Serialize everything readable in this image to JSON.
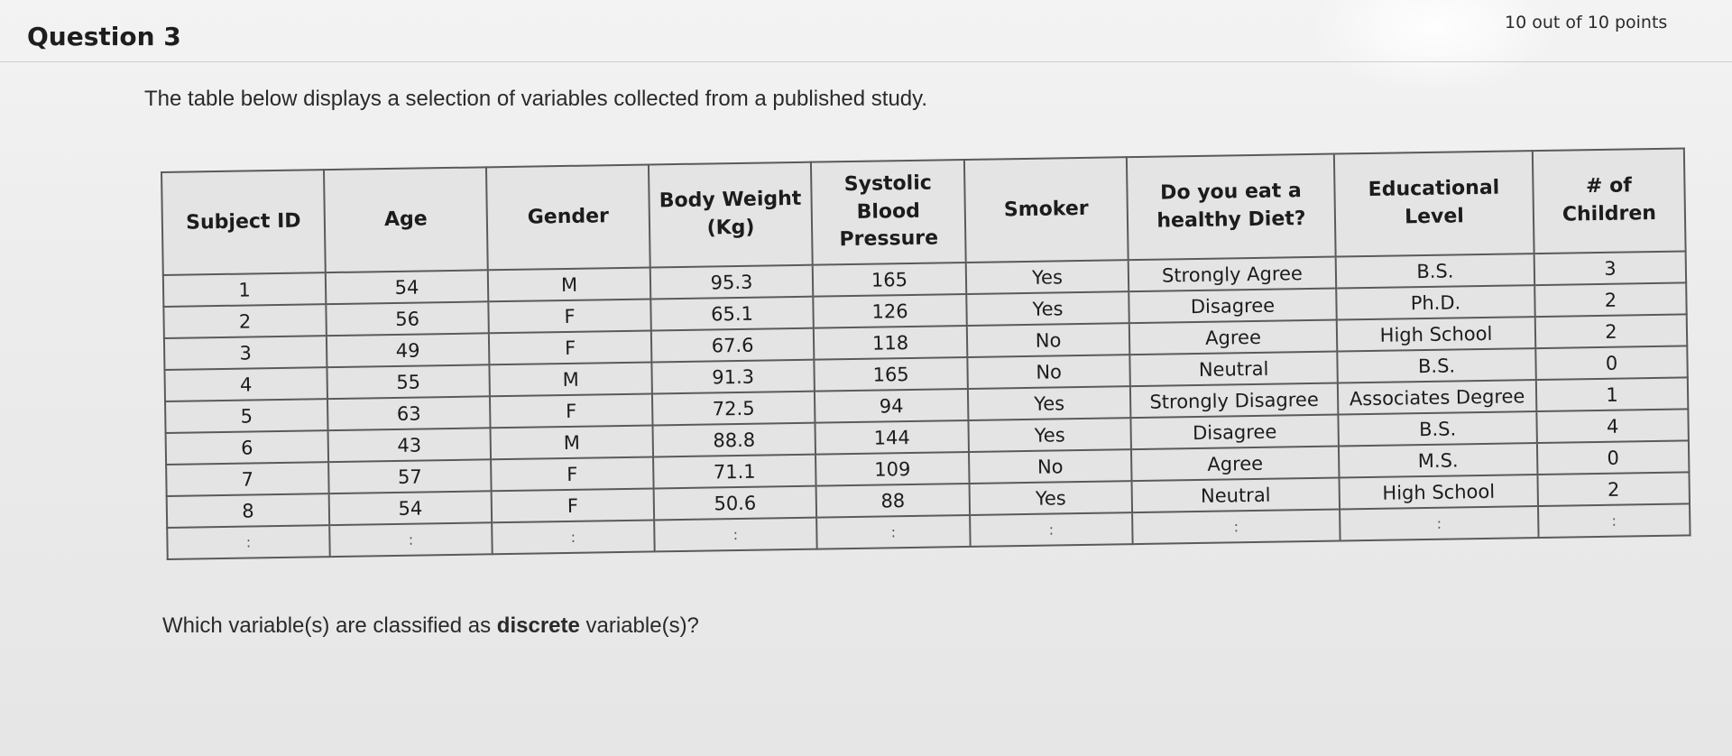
{
  "question": {
    "title": "Question 3",
    "points": "10 out of 10 points",
    "prompt": "The table below displays a selection of variables collected from a published study.",
    "ask_prefix": "Which variable(s) are classified as ",
    "ask_emphasis": "discrete",
    "ask_suffix": " variable(s)?"
  },
  "table": {
    "headers": [
      "Subject ID",
      "Age",
      "Gender",
      "Body Weight (Kg)",
      "Systolic Blood Pressure",
      "Smoker",
      "Do you eat a healthy Diet?",
      "Educational Level",
      "# of Children"
    ],
    "rows": [
      [
        "1",
        "54",
        "M",
        "95.3",
        "165",
        "Yes",
        "Strongly Agree",
        "B.S.",
        "3"
      ],
      [
        "2",
        "56",
        "F",
        "65.1",
        "126",
        "Yes",
        "Disagree",
        "Ph.D.",
        "2"
      ],
      [
        "3",
        "49",
        "F",
        "67.6",
        "118",
        "No",
        "Agree",
        "High School",
        "2"
      ],
      [
        "4",
        "55",
        "M",
        "91.3",
        "165",
        "No",
        "Neutral",
        "B.S.",
        "0"
      ],
      [
        "5",
        "63",
        "F",
        "72.5",
        "94",
        "Yes",
        "Strongly Disagree",
        "Associates Degree",
        "1"
      ],
      [
        "6",
        "43",
        "M",
        "88.8",
        "144",
        "Yes",
        "Disagree",
        "B.S.",
        "4"
      ],
      [
        "7",
        "57",
        "F",
        "71.1",
        "109",
        "No",
        "Agree",
        "M.S.",
        "0"
      ],
      [
        "8",
        "54",
        "F",
        "50.6",
        "88",
        "Yes",
        "Neutral",
        "High School",
        "2"
      ]
    ],
    "continuation": [
      ":",
      ":",
      ":",
      ":",
      ":",
      ":",
      ":",
      ":",
      ":"
    ]
  }
}
